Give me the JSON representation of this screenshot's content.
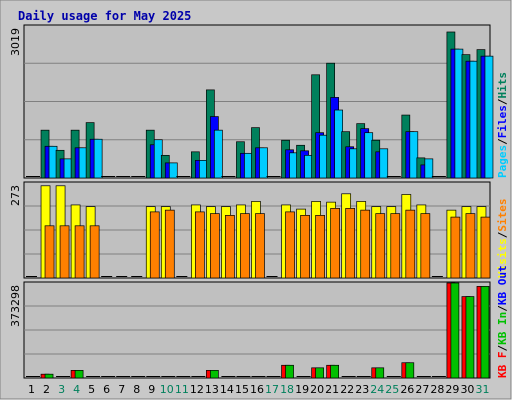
{
  "chart_data": {
    "type": "bar",
    "title": "Daily usage for May 2025",
    "categories": [
      "1",
      "2",
      "3",
      "4",
      "5",
      "6",
      "7",
      "8",
      "9",
      "10",
      "11",
      "12",
      "13",
      "14",
      "15",
      "16",
      "17",
      "18",
      "19",
      "20",
      "21",
      "22",
      "23",
      "24",
      "25",
      "26",
      "27",
      "28",
      "29",
      "30",
      "31"
    ],
    "weekend_days": [
      "3",
      "4",
      "10",
      "11",
      "17",
      "18",
      "24",
      "25",
      "31"
    ],
    "panels": [
      {
        "name": "hits-files-pages",
        "ymax_label": "3019",
        "ylim": [
          0,
          3019
        ],
        "legend": [
          "Pages",
          "Files",
          "Hits"
        ],
        "series": [
          {
            "name": "Hits",
            "color": "#00805c",
            "values": [
              0,
              950,
              550,
              950,
              1100,
              0,
              0,
              0,
              950,
              450,
              0,
              520,
              1750,
              0,
              720,
              1000,
              0,
              750,
              650,
              2050,
              2280,
              920,
              1080,
              750,
              0,
              1250,
              400,
              0,
              2900,
              2450,
              2550
            ]
          },
          {
            "name": "Files",
            "color": "#0000ff",
            "values": [
              0,
              630,
              380,
              600,
              770,
              0,
              0,
              0,
              660,
              300,
              0,
              350,
              1220,
              0,
              490,
              600,
              0,
              560,
              540,
              900,
              1600,
              620,
              980,
              520,
              0,
              920,
              260,
              0,
              2560,
              2320,
              2420
            ]
          },
          {
            "name": "Pages",
            "color": "#00ccff",
            "values": [
              0,
              630,
              380,
              600,
              770,
              0,
              0,
              0,
              760,
              300,
              0,
              350,
              950,
              0,
              490,
              600,
              0,
              500,
              450,
              850,
              1350,
              580,
              900,
              580,
              0,
              920,
              380,
              0,
              2560,
              2320,
              2420
            ]
          }
        ]
      },
      {
        "name": "visits-sites",
        "ymax_label": "273",
        "ylim": [
          0,
          273
        ],
        "legend": [
          "Visits",
          "Sites"
        ],
        "series": [
          {
            "name": "Visits",
            "color": "#ffff00",
            "values": [
              0,
              265,
              265,
              210,
              205,
              0,
              0,
              0,
              205,
              205,
              0,
              210,
              205,
              205,
              210,
              220,
              0,
              210,
              198,
              220,
              218,
              242,
              220,
              205,
              205,
              240,
              210,
              0,
              195,
              205,
              205
            ]
          },
          {
            "name": "Sites",
            "color": "#ff8000",
            "values": [
              0,
              150,
              150,
              150,
              150,
              0,
              0,
              0,
              190,
              195,
              0,
              190,
              185,
              180,
              185,
              185,
              0,
              190,
              180,
              180,
              200,
              200,
              195,
              185,
              185,
              195,
              185,
              0,
              175,
              185,
              175
            ]
          }
        ]
      },
      {
        "name": "kb",
        "ymax_label": "373298",
        "ylim": [
          0,
          373298
        ],
        "legend": [
          "KB F",
          "KB In",
          "KB Out"
        ],
        "series": [
          {
            "name": "KB F",
            "color": "#ff0000",
            "values": [
              0,
              15000,
              0,
              30000,
              0,
              0,
              0,
              0,
              0,
              0,
              0,
              0,
              30000,
              0,
              0,
              0,
              0,
              50000,
              0,
              40000,
              50000,
              0,
              0,
              40000,
              0,
              60000,
              0,
              0,
              373298,
              320000,
              360000
            ]
          },
          {
            "name": "KB In",
            "color": "#00c000",
            "values": [
              0,
              15000,
              0,
              30000,
              0,
              0,
              0,
              0,
              0,
              0,
              0,
              0,
              30000,
              0,
              0,
              0,
              0,
              50000,
              0,
              40000,
              50000,
              0,
              0,
              40000,
              0,
              60000,
              0,
              0,
              373298,
              320000,
              360000
            ]
          },
          {
            "name": "KB Out",
            "color": "#0000ff",
            "values": [
              0,
              0,
              0,
              0,
              0,
              0,
              0,
              0,
              0,
              0,
              0,
              0,
              0,
              0,
              0,
              0,
              0,
              0,
              0,
              0,
              0,
              0,
              0,
              0,
              0,
              0,
              0,
              0,
              0,
              0,
              0
            ]
          }
        ]
      }
    ],
    "colors": {
      "plot_bg": "#c0c0c0",
      "frame_bg": "#c8c8c8",
      "grid": "#808080",
      "weekday_label": "#000000",
      "weekend_label": "#00805c",
      "separator": "#000000"
    }
  }
}
